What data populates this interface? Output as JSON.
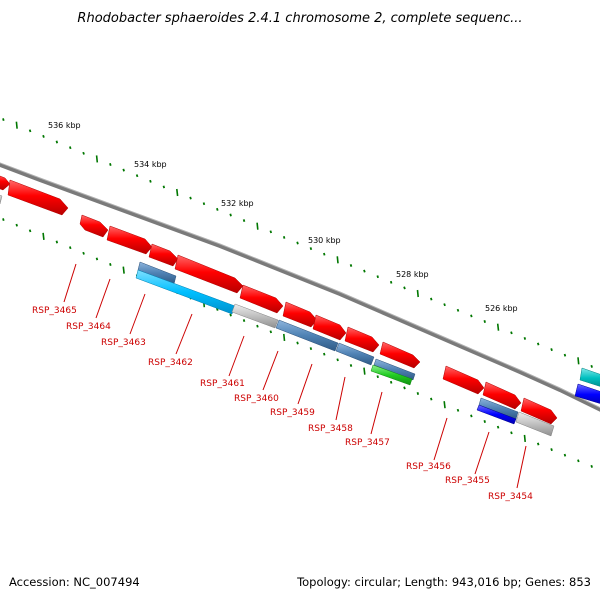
{
  "title": "Rhodobacter sphaeroides 2.4.1 chromosome 2, complete sequenc...",
  "footer": {
    "accession": "Accession: NC_007494",
    "summary": "Topology: circular; Length: 943,016 bp; Genes: 853"
  },
  "scale_labels": [
    "536 kbp",
    "534 kbp",
    "532 kbp",
    "530 kbp",
    "528 kbp",
    "526 kbp"
  ],
  "gene_labels": [
    "RSP_3465",
    "RSP_3464",
    "RSP_3463",
    "RSP_3462",
    "RSP_3461",
    "RSP_3460",
    "RSP_3459",
    "RSP_3458",
    "RSP_3457",
    "RSP_3456",
    "RSP_3455",
    "RSP_3454"
  ],
  "colors": {
    "gene_red": "#ff0000",
    "gene_steelblue": "#4f82b4",
    "gene_cyan": "#00bfff",
    "gene_gray": "#c0c0c0",
    "gene_green": "#22cc22",
    "gene_blue": "#0000ff",
    "gene_teal": "#00c0c0",
    "backbone": "#808080",
    "tick": "#007700",
    "label": "#cc0000"
  }
}
